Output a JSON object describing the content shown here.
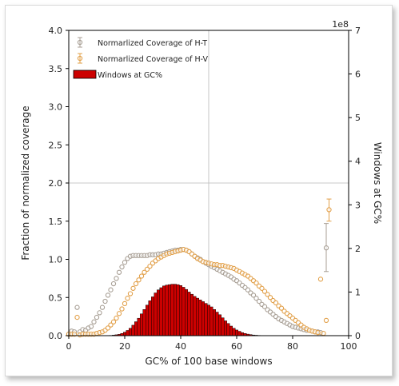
{
  "chart_data": {
    "type": "scatter+bar",
    "xlabel": "GC% of 100 base windows",
    "ylabel_left": "Fraction of normalized coverage",
    "ylabel_right": "Windows at GC%",
    "right_axis_multiplier": "1e8",
    "xlim": [
      0,
      100
    ],
    "ylim_left": [
      0,
      4.0
    ],
    "ylim_right": [
      0,
      7
    ],
    "x_ticks": [
      "0",
      "20",
      "40",
      "60",
      "80",
      "100"
    ],
    "y_ticks_left": [
      "0.0",
      "0.5",
      "1.0",
      "1.5",
      "2.0",
      "2.5",
      "3.0",
      "3.5",
      "4.0"
    ],
    "y_ticks_right": [
      "0",
      "1",
      "2",
      "3",
      "4",
      "5",
      "6",
      "7"
    ],
    "legend_position": "top-left",
    "reference_lines": {
      "vertical_x": 50,
      "horizontal_y": 2.0
    },
    "colors": {
      "ht": "#a89f95",
      "hv": "#e2a04a",
      "bars": "#cc0000",
      "ref": "#b8b8b8"
    },
    "series": [
      {
        "name": "Normarlized Coverage of H-T",
        "kind": "markers",
        "points": [
          [
            0,
            0.02
          ],
          [
            1,
            0.06
          ],
          [
            2,
            0.05
          ],
          [
            3,
            0.37
          ],
          [
            4,
            0.05
          ],
          [
            5,
            0.08
          ],
          [
            6,
            0.07
          ],
          [
            7,
            0.1
          ],
          [
            8,
            0.12
          ],
          [
            9,
            0.18
          ],
          [
            10,
            0.24
          ],
          [
            11,
            0.3
          ],
          [
            12,
            0.37
          ],
          [
            13,
            0.45
          ],
          [
            14,
            0.53
          ],
          [
            15,
            0.6
          ],
          [
            16,
            0.68
          ],
          [
            17,
            0.75
          ],
          [
            18,
            0.83
          ],
          [
            19,
            0.9
          ],
          [
            20,
            0.96
          ],
          [
            21,
            1.01
          ],
          [
            22,
            1.04
          ],
          [
            23,
            1.05
          ],
          [
            24,
            1.05
          ],
          [
            25,
            1.05
          ],
          [
            26,
            1.05
          ],
          [
            27,
            1.05
          ],
          [
            28,
            1.05
          ],
          [
            29,
            1.06
          ],
          [
            30,
            1.06
          ],
          [
            31,
            1.06
          ],
          [
            32,
            1.07
          ],
          [
            33,
            1.07
          ],
          [
            34,
            1.08
          ],
          [
            35,
            1.09
          ],
          [
            36,
            1.1
          ],
          [
            37,
            1.11
          ],
          [
            38,
            1.12
          ],
          [
            39,
            1.12
          ],
          [
            40,
            1.13
          ],
          [
            41,
            1.13
          ],
          [
            42,
            1.12
          ],
          [
            43,
            1.1
          ],
          [
            44,
            1.07
          ],
          [
            45,
            1.04
          ],
          [
            46,
            1.02
          ],
          [
            47,
            1.0
          ],
          [
            48,
            0.97
          ],
          [
            49,
            0.95
          ],
          [
            50,
            0.93
          ],
          [
            51,
            0.91
          ],
          [
            52,
            0.89
          ],
          [
            53,
            0.87
          ],
          [
            54,
            0.85
          ],
          [
            55,
            0.83
          ],
          [
            56,
            0.81
          ],
          [
            57,
            0.79
          ],
          [
            58,
            0.77
          ],
          [
            59,
            0.74
          ],
          [
            60,
            0.72
          ],
          [
            61,
            0.69
          ],
          [
            62,
            0.66
          ],
          [
            63,
            0.63
          ],
          [
            64,
            0.6
          ],
          [
            65,
            0.56
          ],
          [
            66,
            0.53
          ],
          [
            67,
            0.49
          ],
          [
            68,
            0.45
          ],
          [
            69,
            0.41
          ],
          [
            70,
            0.38
          ],
          [
            71,
            0.34
          ],
          [
            72,
            0.31
          ],
          [
            73,
            0.28
          ],
          [
            74,
            0.25
          ],
          [
            75,
            0.22
          ],
          [
            76,
            0.2
          ],
          [
            77,
            0.18
          ],
          [
            78,
            0.16
          ],
          [
            79,
            0.14
          ],
          [
            80,
            0.12
          ],
          [
            81,
            0.11
          ],
          [
            82,
            0.1
          ],
          [
            83,
            0.09
          ],
          [
            84,
            0.08
          ],
          [
            85,
            0.07
          ],
          [
            86,
            0.07
          ],
          [
            87,
            0.06
          ],
          [
            88,
            0.05
          ],
          [
            89,
            0.05
          ],
          [
            90,
            0.04
          ],
          [
            92,
            1.15
          ]
        ],
        "error_bars": {
          "92": [
            0.84,
            1.47
          ]
        }
      },
      {
        "name": "Normarlized Coverage of H-V",
        "kind": "markers",
        "points": [
          [
            0,
            0.02
          ],
          [
            1,
            0.02
          ],
          [
            2,
            0.02
          ],
          [
            3,
            0.24
          ],
          [
            4,
            0.01
          ],
          [
            5,
            0.02
          ],
          [
            6,
            0.02
          ],
          [
            7,
            0.02
          ],
          [
            8,
            0.02
          ],
          [
            9,
            0.02
          ],
          [
            10,
            0.03
          ],
          [
            11,
            0.04
          ],
          [
            12,
            0.05
          ],
          [
            13,
            0.07
          ],
          [
            14,
            0.1
          ],
          [
            15,
            0.14
          ],
          [
            16,
            0.18
          ],
          [
            17,
            0.23
          ],
          [
            18,
            0.29
          ],
          [
            19,
            0.35
          ],
          [
            20,
            0.42
          ],
          [
            21,
            0.49
          ],
          [
            22,
            0.55
          ],
          [
            23,
            0.62
          ],
          [
            24,
            0.68
          ],
          [
            25,
            0.73
          ],
          [
            26,
            0.78
          ],
          [
            27,
            0.83
          ],
          [
            28,
            0.87
          ],
          [
            29,
            0.91
          ],
          [
            30,
            0.95
          ],
          [
            31,
            0.98
          ],
          [
            32,
            1.01
          ],
          [
            33,
            1.03
          ],
          [
            34,
            1.05
          ],
          [
            35,
            1.07
          ],
          [
            36,
            1.08
          ],
          [
            37,
            1.09
          ],
          [
            38,
            1.1
          ],
          [
            39,
            1.11
          ],
          [
            40,
            1.12
          ],
          [
            41,
            1.13
          ],
          [
            42,
            1.12
          ],
          [
            43,
            1.1
          ],
          [
            44,
            1.07
          ],
          [
            45,
            1.04
          ],
          [
            46,
            1.01
          ],
          [
            47,
            0.99
          ],
          [
            48,
            0.97
          ],
          [
            49,
            0.96
          ],
          [
            50,
            0.95
          ],
          [
            51,
            0.94
          ],
          [
            52,
            0.93
          ],
          [
            53,
            0.93
          ],
          [
            54,
            0.92
          ],
          [
            55,
            0.92
          ],
          [
            56,
            0.91
          ],
          [
            57,
            0.9
          ],
          [
            58,
            0.89
          ],
          [
            59,
            0.88
          ],
          [
            60,
            0.86
          ],
          [
            61,
            0.84
          ],
          [
            62,
            0.82
          ],
          [
            63,
            0.8
          ],
          [
            64,
            0.78
          ],
          [
            65,
            0.75
          ],
          [
            66,
            0.72
          ],
          [
            67,
            0.69
          ],
          [
            68,
            0.65
          ],
          [
            69,
            0.62
          ],
          [
            70,
            0.58
          ],
          [
            71,
            0.54
          ],
          [
            72,
            0.5
          ],
          [
            73,
            0.46
          ],
          [
            74,
            0.43
          ],
          [
            75,
            0.39
          ],
          [
            76,
            0.36
          ],
          [
            77,
            0.32
          ],
          [
            78,
            0.29
          ],
          [
            79,
            0.26
          ],
          [
            80,
            0.23
          ],
          [
            81,
            0.2
          ],
          [
            82,
            0.17
          ],
          [
            83,
            0.14
          ],
          [
            84,
            0.11
          ],
          [
            85,
            0.09
          ],
          [
            86,
            0.07
          ],
          [
            87,
            0.06
          ],
          [
            88,
            0.05
          ],
          [
            89,
            0.04
          ],
          [
            90,
            0.74
          ],
          [
            91,
            0.03
          ],
          [
            92,
            0.2
          ],
          [
            93,
            1.65
          ]
        ],
        "error_bars": {
          "93": [
            1.5,
            1.79
          ]
        }
      },
      {
        "name": "Windows at GC%",
        "kind": "bar",
        "axis": "right",
        "x": [
          14,
          15,
          16,
          17,
          18,
          19,
          20,
          21,
          22,
          23,
          24,
          25,
          26,
          27,
          28,
          29,
          30,
          31,
          32,
          33,
          34,
          35,
          36,
          37,
          38,
          39,
          40,
          41,
          42,
          43,
          44,
          45,
          46,
          47,
          48,
          49,
          50,
          51,
          52,
          53,
          54,
          55,
          56,
          57,
          58,
          59,
          60,
          61,
          62,
          63,
          64,
          65,
          66,
          67,
          68,
          69,
          70
        ],
        "values": [
          0.003,
          0.006,
          0.012,
          0.02,
          0.03,
          0.05,
          0.08,
          0.12,
          0.17,
          0.24,
          0.32,
          0.4,
          0.5,
          0.6,
          0.7,
          0.8,
          0.89,
          0.98,
          1.05,
          1.1,
          1.14,
          1.16,
          1.17,
          1.18,
          1.18,
          1.17,
          1.15,
          1.11,
          1.06,
          1.0,
          0.95,
          0.9,
          0.86,
          0.82,
          0.78,
          0.74,
          0.7,
          0.66,
          0.6,
          0.54,
          0.48,
          0.41,
          0.34,
          0.28,
          0.22,
          0.17,
          0.13,
          0.1,
          0.07,
          0.05,
          0.035,
          0.025,
          0.015,
          0.01,
          0.006,
          0.004,
          0.002
        ]
      }
    ]
  }
}
